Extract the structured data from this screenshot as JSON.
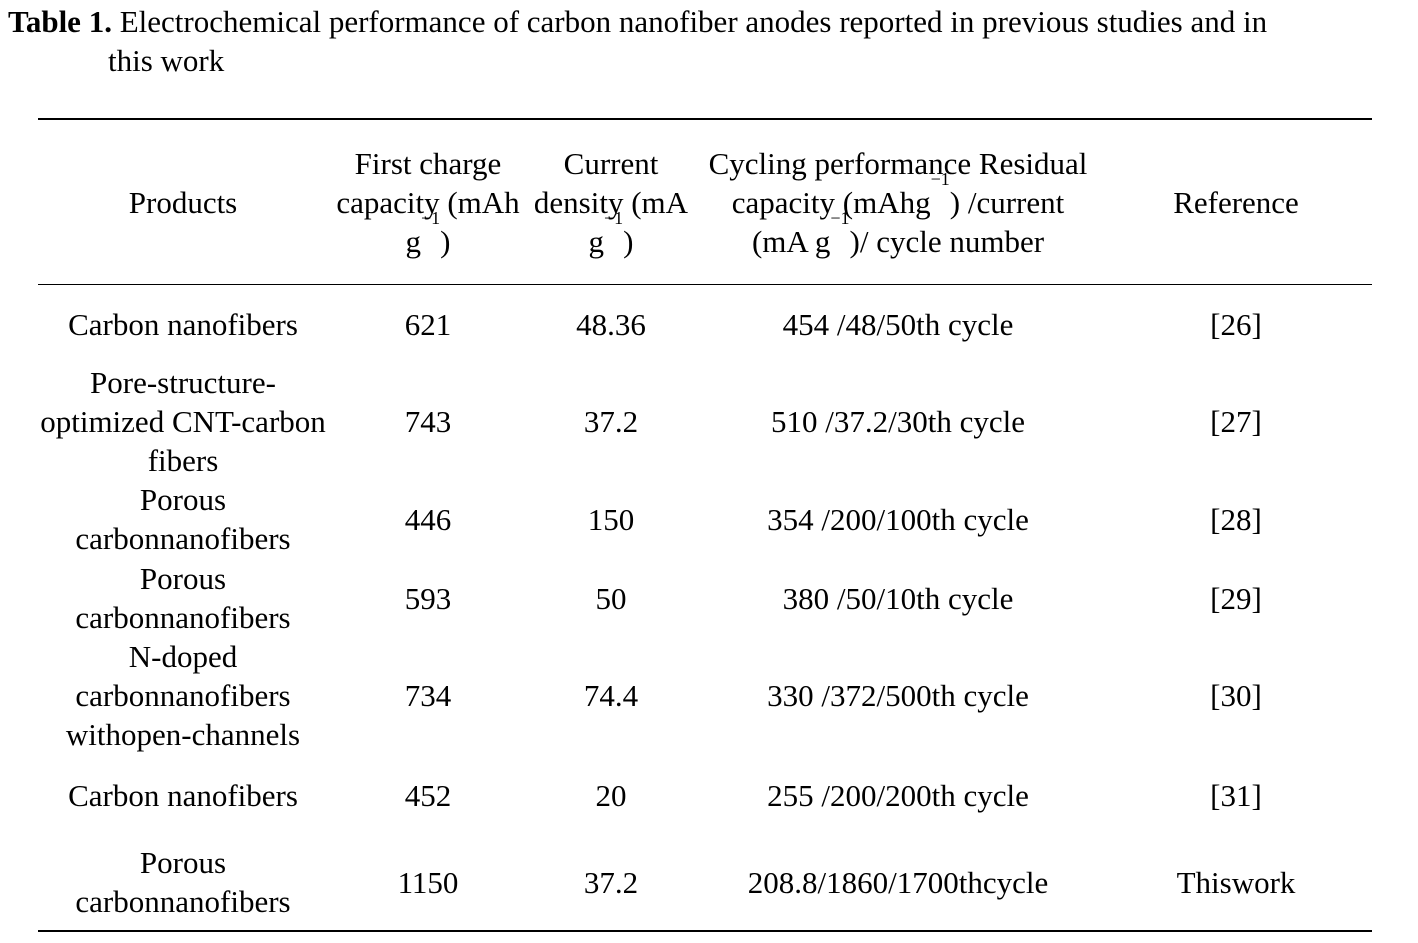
{
  "caption": {
    "label": "Table 1.",
    "text_line1": "Electrochemical performance of carbon nanofiber anodes reported in previous studies and in",
    "text_line2": "this work"
  },
  "table": {
    "headers": {
      "products": "Products",
      "first_charge": {
        "l1": "First charge",
        "l2": "capacity",
        "l3a": "(mAh g",
        "sup": "−1",
        "l3b": ")"
      },
      "current_density": {
        "l1": "Current",
        "l2": "density",
        "l3a": "(mA g",
        "sup": "−1",
        "l3b": ")"
      },
      "cycling": {
        "l1": "Cycling performance",
        "l2a": "Residual capacity (mAhg",
        "l2sup": "−1",
        "l2b": ")",
        "l3a": "/current (mA g",
        "l3sup": "−1",
        "l3b": ")/",
        "l4": "cycle number"
      },
      "reference": "Reference"
    },
    "rows": [
      {
        "product": [
          "Carbon nanofibers"
        ],
        "capacity": "621",
        "current": "48.36",
        "cycling": "454 /48/50th cycle",
        "reference": [
          "[26]"
        ]
      },
      {
        "product": [
          "Pore-structure-",
          "optimized CNT-",
          "carbon fibers"
        ],
        "capacity": "743",
        "current": "37.2",
        "cycling": "510 /37.2/30th cycle",
        "reference": [
          "[27]"
        ]
      },
      {
        "product": [
          "Porous carbon",
          "nanofibers"
        ],
        "capacity": "446",
        "current": "150",
        "cycling": "354 /200/100th cycle",
        "reference": [
          "[28]"
        ]
      },
      {
        "product": [
          "Porous carbon",
          "nanofibers"
        ],
        "capacity": "593",
        "current": "50",
        "cycling": "380 /50/10th cycle",
        "reference": [
          "[29]"
        ]
      },
      {
        "product": [
          "N-doped carbon",
          "nanofibers with",
          "open-channels"
        ],
        "capacity": "734",
        "current": "74.4",
        "cycling": "330 /372/500th cycle",
        "reference": [
          "[30]"
        ]
      },
      {
        "product": [
          "Carbon nanofibers"
        ],
        "capacity": "452",
        "current": "20",
        "cycling": "255 /200/200th cycle",
        "reference": [
          "[31]"
        ]
      },
      {
        "product": [
          "Porous carbon",
          "nanofibers"
        ],
        "capacity": "1150",
        "current": "37.2",
        "cycling": "208.8/1860/1700thcycle",
        "reference": [
          "This",
          "work"
        ]
      }
    ]
  }
}
